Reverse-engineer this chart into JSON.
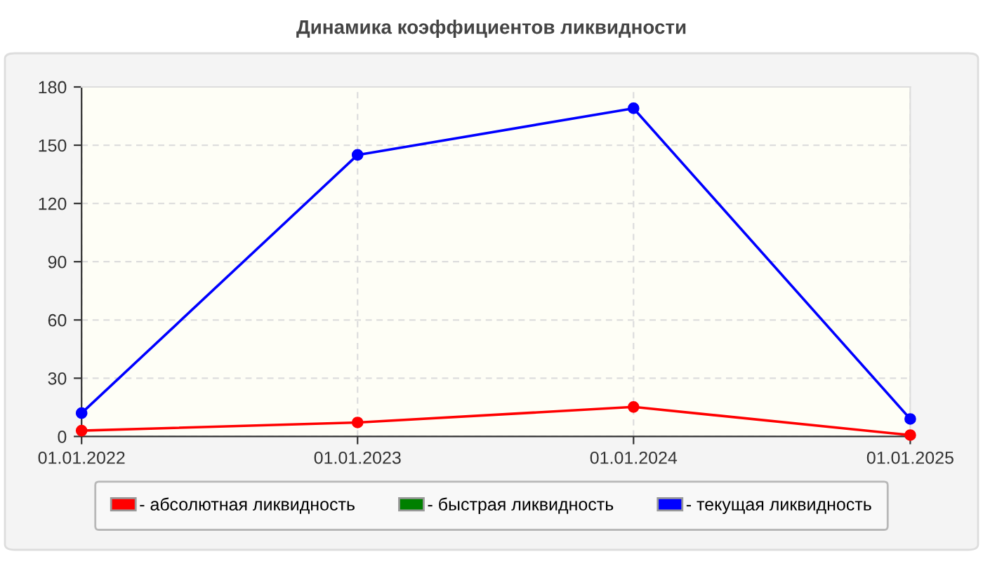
{
  "chart_data": {
    "type": "line",
    "title": "Динамика коэффициентов ликвидности",
    "x": [
      "2022-01-01",
      "2023-01-01",
      "2024-01-01",
      "2025-01-01"
    ],
    "series": [
      {
        "name": "- абсолютная ликвидность",
        "color": "#ff0000",
        "values": [
          3,
          7.2,
          15.2,
          0.7
        ]
      },
      {
        "name": "- быстрая ликвидность",
        "color": "#008000",
        "values": [
          null,
          null,
          null,
          null
        ]
      },
      {
        "name": "- текущая ликвидность",
        "color": "#0000ff",
        "values": [
          12,
          145,
          169,
          9
        ]
      }
    ],
    "xlim": [
      "2022-01-01",
      "2025-01-01"
    ],
    "xticks": [
      {
        "value": "2022-01-01",
        "label": "01.01.2022"
      },
      {
        "value": "2023-01-01",
        "label": "01.01.2023"
      },
      {
        "value": "2024-01-01",
        "label": "01.01.2024"
      },
      {
        "value": "2025-01-01",
        "label": "01.01.2025"
      }
    ],
    "ylim": [
      0,
      180
    ],
    "yticks": [
      0,
      30,
      60,
      90,
      120,
      150,
      180
    ],
    "grid": true,
    "legend": "bottom",
    "marker": "circle",
    "line_style": "solid"
  }
}
